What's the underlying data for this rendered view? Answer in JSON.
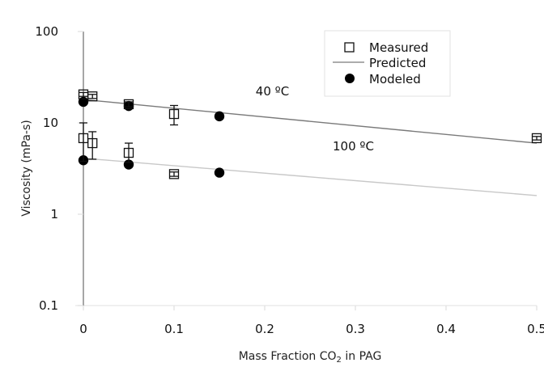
{
  "chart_data": {
    "type": "scatter",
    "title": "",
    "xlabel": "Mass Fraction CO",
    "xlabel_sub": "2",
    "xlabel_suffix": " in PAG",
    "ylabel": "Viscosity (mPa-s)",
    "xlim": [
      0,
      0.5
    ],
    "ylim": [
      0.1,
      100
    ],
    "yscale": "log",
    "x_ticks": [
      0,
      0.1,
      0.2,
      0.3,
      0.4,
      0.5
    ],
    "x_tick_labels": [
      "0",
      "0.1",
      "0.2",
      "0.3",
      "0.4",
      "0.5"
    ],
    "y_ticks": [
      0.1,
      1,
      10,
      100
    ],
    "y_tick_labels": [
      "0.1",
      "1",
      "10",
      "100"
    ],
    "grid": false,
    "legend": {
      "position": "top-right",
      "entries": [
        {
          "label": "Measured",
          "marker": "open-square"
        },
        {
          "label": "Predicted",
          "marker": "line"
        },
        {
          "label": "Modeled",
          "marker": "filled-circle"
        }
      ]
    },
    "annotations": [
      {
        "text": "40 ºC",
        "x": 0.19,
        "y": 20
      },
      {
        "text": "100 ºC",
        "x": 0.275,
        "y": 5.0
      }
    ],
    "series": [
      {
        "name": "Measured 40 °C",
        "type": "open-square",
        "points": [
          {
            "x": 0.0,
            "y": 20.5,
            "err_low": 19.5,
            "err_high": 21.5
          },
          {
            "x": 0.01,
            "y": 19.5,
            "err_low": 18.5,
            "err_high": 20.5
          },
          {
            "x": 0.05,
            "y": 16.0,
            "err_low": 15.0,
            "err_high": 17.0
          },
          {
            "x": 0.1,
            "y": 12.5,
            "err_low": 9.5,
            "err_high": 15.5
          },
          {
            "x": 0.5,
            "y": 6.8,
            "err_low": 6.5,
            "err_high": 7.1
          }
        ]
      },
      {
        "name": "Measured 100 °C",
        "type": "open-square",
        "points": [
          {
            "x": 0.0,
            "y": 6.8,
            "err_low": 3.8,
            "err_high": 10.0
          },
          {
            "x": 0.01,
            "y": 6.0,
            "err_low": 4.0,
            "err_high": 8.0
          },
          {
            "x": 0.05,
            "y": 4.7,
            "err_low": 3.7,
            "err_high": 6.0
          },
          {
            "x": 0.1,
            "y": 2.75,
            "err_low": 2.6,
            "err_high": 2.9
          }
        ]
      },
      {
        "name": "Modeled 40 °C",
        "type": "filled-circle",
        "points": [
          {
            "x": 0.0,
            "y": 17.0
          },
          {
            "x": 0.05,
            "y": 15.3
          },
          {
            "x": 0.15,
            "y": 11.8
          }
        ]
      },
      {
        "name": "Modeled 100 °C",
        "type": "filled-circle",
        "points": [
          {
            "x": 0.0,
            "y": 3.9
          },
          {
            "x": 0.05,
            "y": 3.5
          },
          {
            "x": 0.15,
            "y": 2.85
          }
        ]
      },
      {
        "name": "Predicted 40 °C",
        "type": "line",
        "color": "#7a7a7a",
        "points": [
          {
            "x": 0.0,
            "y": 18.0
          },
          {
            "x": 0.5,
            "y": 6.0
          }
        ]
      },
      {
        "name": "Predicted 100 °C",
        "type": "line",
        "color": "#c8c8c8",
        "points": [
          {
            "x": 0.0,
            "y": 4.1
          },
          {
            "x": 0.5,
            "y": 1.6
          }
        ]
      }
    ]
  }
}
